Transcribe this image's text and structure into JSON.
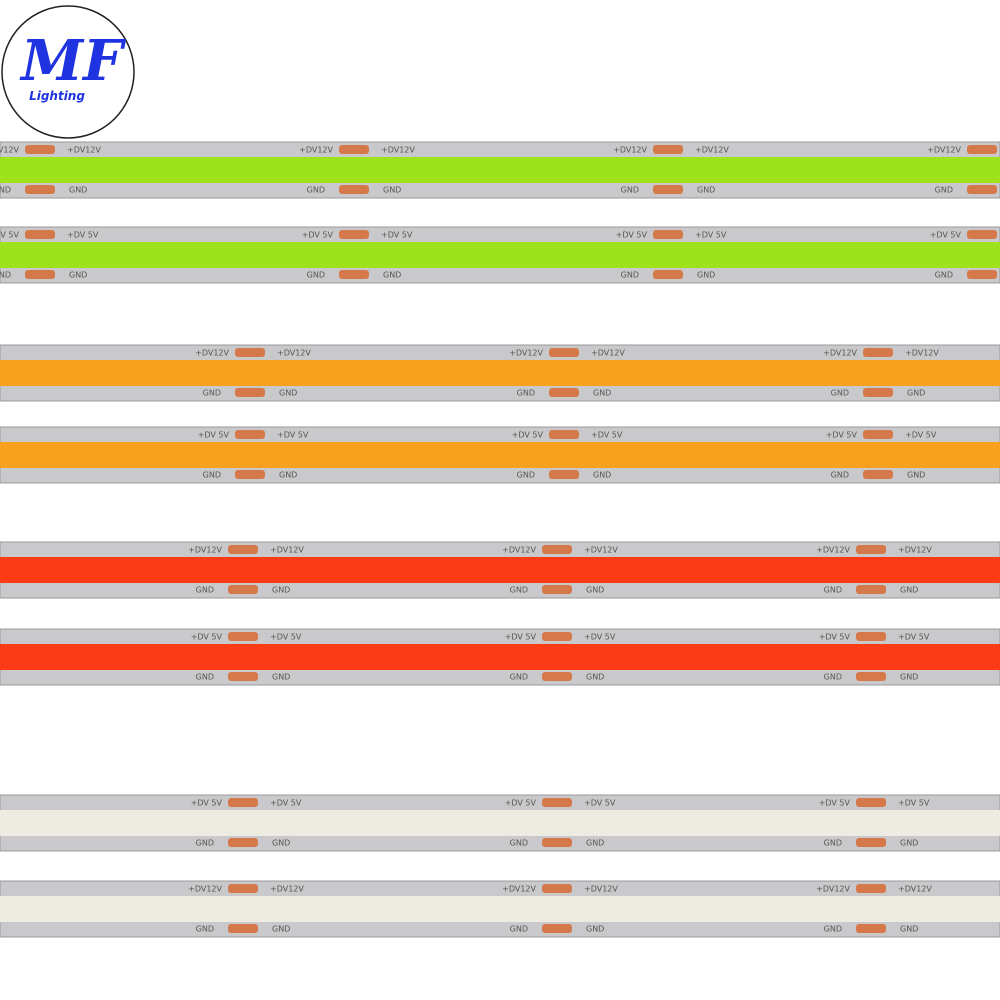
{
  "logo": {
    "mark": "MF",
    "tagline": "Lighting"
  },
  "strips": [
    {
      "color": "#9ee21c",
      "supply_label": "+DV12V",
      "ground_label": "GND"
    },
    {
      "color": "#9ee21c",
      "supply_label": "+DV 5V",
      "ground_label": "GND"
    },
    {
      "color": "#f7a11f",
      "supply_label": "+DV12V",
      "ground_label": "GND"
    },
    {
      "color": "#f7a11f",
      "supply_label": "+DV 5V",
      "ground_label": "GND"
    },
    {
      "color": "#fb3b16",
      "supply_label": "+DV12V",
      "ground_label": "GND"
    },
    {
      "color": "#fb3b16",
      "supply_label": "+DV 5V",
      "ground_label": "GND"
    },
    {
      "color": "#eeebe3",
      "supply_label": "+DV 5V",
      "ground_label": "GND"
    },
    {
      "color": "#eeebe3",
      "supply_label": "+DV12V",
      "ground_label": "GND"
    }
  ]
}
